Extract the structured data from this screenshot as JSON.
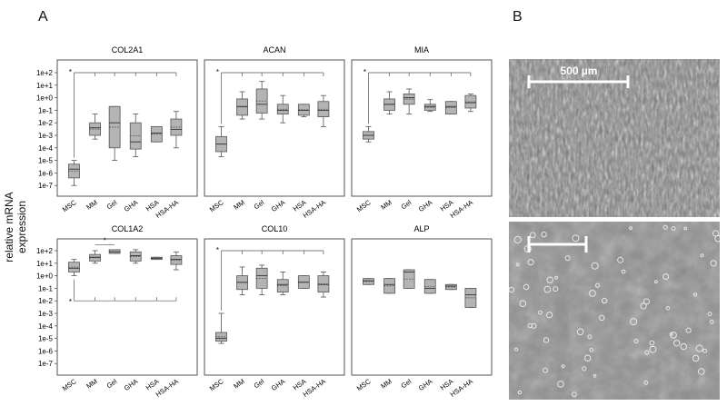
{
  "figure": {
    "panel_a_label": "A",
    "panel_b_label": "B",
    "y_axis_label": "relative mRNA expression",
    "scale_bar_label": "500 µm"
  },
  "chart_data": [
    {
      "type": "box",
      "title": "COL2A1",
      "log_scale": true,
      "ylim": [
        1e-08,
        1000.0
      ],
      "y_ticks": [
        "1e-7",
        "1e-6",
        "1e-5",
        "1e-4",
        "1e-3",
        "1e-2",
        "1e-1",
        "1e+0",
        "1e+1",
        "1e+2"
      ],
      "categories": [
        "MSC",
        "MM",
        "Gel",
        "GHA",
        "HSA",
        "HSA-HA"
      ],
      "boxes": [
        {
          "whisker_low": 1e-07,
          "q1": 4e-07,
          "median": 2e-06,
          "q3": 5e-06,
          "whisker_high": 1e-05
        },
        {
          "whisker_low": 0.0005,
          "q1": 0.001,
          "median": 0.004,
          "q3": 0.01,
          "whisker_high": 0.05
        },
        {
          "whisker_low": 1e-05,
          "q1": 0.0001,
          "median": 0.01,
          "q3": 0.2,
          "whisker_high": 0.2
        },
        {
          "whisker_low": 2e-05,
          "q1": 8e-05,
          "median": 0.0003,
          "q3": 0.01,
          "whisker_high": 0.05
        },
        {
          "whisker_low": 0.0003,
          "q1": 0.0003,
          "median": 0.0015,
          "q3": 0.005,
          "whisker_high": 0.005
        },
        {
          "whisker_low": 0.0001,
          "q1": 0.001,
          "median": 0.003,
          "q3": 0.02,
          "whisker_high": 0.08
        }
      ],
      "significance": {
        "label": "*",
        "type": "bracket-from-first"
      }
    },
    {
      "type": "box",
      "title": "ACAN",
      "log_scale": true,
      "ylim": [
        1e-08,
        1000.0
      ],
      "categories": [
        "MSC",
        "MM",
        "Gel",
        "GHA",
        "HSA",
        "HSA-HA"
      ],
      "boxes": [
        {
          "whisker_low": 2e-05,
          "q1": 5e-05,
          "median": 0.0002,
          "q3": 0.0008,
          "whisker_high": 0.005
        },
        {
          "whisker_low": 0.02,
          "q1": 0.04,
          "median": 0.2,
          "q3": 0.8,
          "whisker_high": 3
        },
        {
          "whisker_low": 0.02,
          "q1": 0.06,
          "median": 0.3,
          "q3": 5,
          "whisker_high": 20.0
        },
        {
          "whisker_low": 0.01,
          "q1": 0.05,
          "median": 0.1,
          "q3": 0.3,
          "whisker_high": 1.5
        },
        {
          "whisker_low": 0.03,
          "q1": 0.04,
          "median": 0.1,
          "q3": 0.3,
          "whisker_high": 0.3
        },
        {
          "whisker_low": 0.005,
          "q1": 0.03,
          "median": 0.1,
          "q3": 0.5,
          "whisker_high": 1.5
        }
      ],
      "significance": {
        "label": "*",
        "type": "bracket-from-first"
      }
    },
    {
      "type": "box",
      "title": "MIA",
      "log_scale": true,
      "ylim": [
        1e-08,
        1000.0
      ],
      "categories": [
        "MSC",
        "MM",
        "Gel",
        "GHA",
        "HSA",
        "HSA-HA"
      ],
      "boxes": [
        {
          "whisker_low": 0.0003,
          "q1": 0.0005,
          "median": 0.001,
          "q3": 0.002,
          "whisker_high": 0.005
        },
        {
          "whisker_low": 0.05,
          "q1": 0.1,
          "median": 0.3,
          "q3": 0.8,
          "whisker_high": 3
        },
        {
          "whisker_low": 0.05,
          "q1": 0.3,
          "median": 1,
          "q3": 2,
          "whisker_high": 5
        },
        {
          "whisker_low": 0.08,
          "q1": 0.1,
          "median": 0.2,
          "q3": 0.3,
          "whisker_high": 0.7
        },
        {
          "whisker_low": 0.05,
          "q1": 0.05,
          "median": 0.2,
          "q3": 0.5,
          "whisker_high": 0.5
        },
        {
          "whisker_low": 0.08,
          "q1": 0.15,
          "median": 0.4,
          "q3": 1.5,
          "whisker_high": 2
        }
      ],
      "significance": {
        "label": "*",
        "type": "bracket-from-first"
      }
    },
    {
      "type": "box",
      "title": "COL1A2",
      "log_scale": true,
      "ylim": [
        1e-08,
        1000.0
      ],
      "y_ticks": [
        "1e-7",
        "1e-6",
        "1e-5",
        "1e-4",
        "1e-3",
        "1e-2",
        "1e-1",
        "1e+0",
        "1e+1",
        "1e+2"
      ],
      "categories": [
        "MSC",
        "MM",
        "Gel",
        "GHA",
        "HSA",
        "HSA-HA"
      ],
      "boxes": [
        {
          "whisker_low": 1,
          "q1": 2,
          "median": 4,
          "q3": 12.0,
          "whisker_high": 20.0
        },
        {
          "whisker_low": 10.0,
          "q1": 15.0,
          "median": 30.0,
          "q3": 50.0,
          "whisker_high": 100.0
        },
        {
          "whisker_low": 60.0,
          "q1": 60.0,
          "median": 80.0,
          "q3": 120.0,
          "whisker_high": 120.0
        },
        {
          "whisker_low": 10.0,
          "q1": 15.0,
          "median": 40.0,
          "q3": 80.0,
          "whisker_high": 120.0
        },
        {
          "whisker_low": 20.0,
          "q1": 20.0,
          "median": 25.0,
          "q3": 30.0,
          "whisker_high": 30.0
        },
        {
          "whisker_low": 3,
          "q1": 8,
          "median": 20.0,
          "q3": 40.0,
          "whisker_high": 80.0
        }
      ],
      "significance": [
        {
          "label": "*",
          "type": "bracket-from-first"
        },
        {
          "label": "*",
          "type": "pair",
          "between": [
            "MM",
            "Gel"
          ]
        }
      ]
    },
    {
      "type": "box",
      "title": "COL10",
      "log_scale": true,
      "ylim": [
        1e-08,
        1000.0
      ],
      "categories": [
        "MSC",
        "MM",
        "Gel",
        "GHA",
        "HSA",
        "HSA-HA"
      ],
      "boxes": [
        {
          "whisker_low": 4e-06,
          "q1": 6e-06,
          "median": 1e-05,
          "q3": 3e-05,
          "whisker_high": 0.001
        },
        {
          "whisker_low": 0.03,
          "q1": 0.08,
          "median": 0.3,
          "q3": 1,
          "whisker_high": 5
        },
        {
          "whisker_low": 0.03,
          "q1": 0.1,
          "median": 1,
          "q3": 4,
          "whisker_high": 7
        },
        {
          "whisker_low": 0.03,
          "q1": 0.05,
          "median": 0.2,
          "q3": 0.5,
          "whisker_high": 2
        },
        {
          "whisker_low": 0.1,
          "q1": 0.1,
          "median": 0.3,
          "q3": 1,
          "whisker_high": 1
        },
        {
          "whisker_low": 0.02,
          "q1": 0.05,
          "median": 0.2,
          "q3": 1,
          "whisker_high": 2
        }
      ],
      "significance": {
        "label": "*",
        "type": "bracket-from-first"
      }
    },
    {
      "type": "box",
      "title": "ALP",
      "log_scale": true,
      "ylim": [
        1e-08,
        1000.0
      ],
      "categories": [
        "MSC",
        "MM",
        "Gel",
        "GHA",
        "HSA",
        "HSA-HA"
      ],
      "boxes": [
        {
          "whisker_low": 0.2,
          "q1": 0.2,
          "median": 0.4,
          "q3": 0.6,
          "whisker_high": 0.6
        },
        {
          "whisker_low": 0.04,
          "q1": 0.04,
          "median": 0.2,
          "q3": 0.6,
          "whisker_high": 0.6
        },
        {
          "whisker_low": 0.1,
          "q1": 0.1,
          "median": 2,
          "q3": 3,
          "whisker_high": 3
        },
        {
          "whisker_low": 0.04,
          "q1": 0.04,
          "median": 0.1,
          "q3": 0.5,
          "whisker_high": 0.5
        },
        {
          "whisker_low": 0.08,
          "q1": 0.08,
          "median": 0.15,
          "q3": 0.2,
          "whisker_high": 0.2
        },
        {
          "whisker_low": 0.003,
          "q1": 0.003,
          "median": 0.03,
          "q3": 0.1,
          "whisker_high": 0.1
        }
      ]
    }
  ]
}
